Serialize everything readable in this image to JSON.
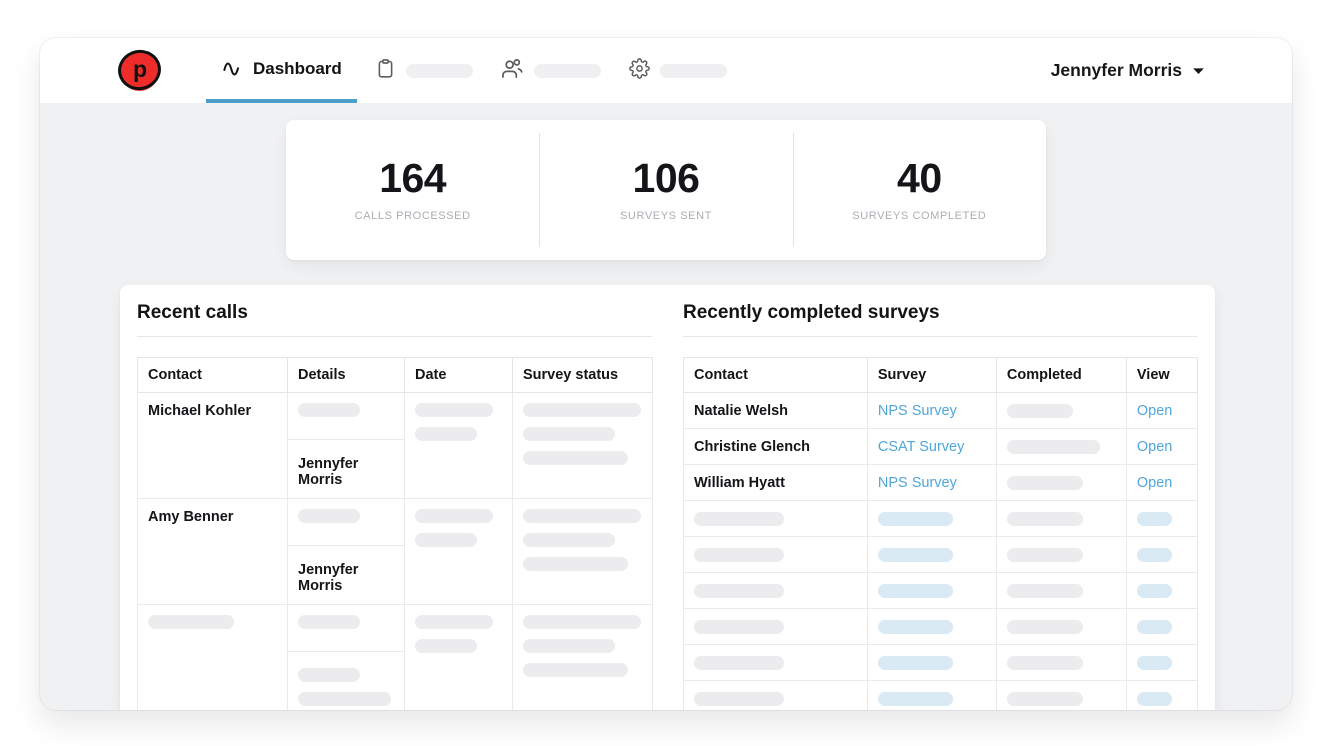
{
  "colors": {
    "accent_blue": "#4fa6d8",
    "tab_underline_blue": "#4b9fc9",
    "light_blue_placeholder": "#d9eaf5",
    "logo_red": "#ee2d2a"
  },
  "nav": {
    "logo_letter": "p",
    "dashboard_tab": "Dashboard",
    "placeholder_tabs": [
      {
        "icon": "clipboard-icon"
      },
      {
        "icon": "users-icon"
      },
      {
        "icon": "gear-icon"
      }
    ],
    "user_name": "Jennyfer Morris"
  },
  "stats": {
    "items": [
      {
        "value": "164",
        "label": "CALLS PROCESSED"
      },
      {
        "value": "106",
        "label": "SURVEYS SENT"
      },
      {
        "value": "40",
        "label": "SURVEYS COMPLETED"
      }
    ]
  },
  "recent_calls": {
    "title": "Recent calls",
    "columns": [
      "Contact",
      "Details",
      "Date",
      "Survey status"
    ],
    "column_keys": [
      "contact",
      "details",
      "date",
      "status"
    ],
    "rows": [
      {
        "contact": {
          "text": "Michael Kohler"
        },
        "details": {
          "split": {
            "top": {
              "ph": [
                62
              ]
            },
            "bottom": {
              "text": "Jennyfer Morris"
            }
          }
        },
        "date": {
          "ph": [
            78,
            62
          ]
        },
        "status": {
          "ph": [
            118,
            92,
            105
          ]
        }
      },
      {
        "contact": {
          "text": "Amy Benner"
        },
        "details": {
          "split": {
            "top": {
              "ph": [
                62
              ]
            },
            "bottom": {
              "text": "Jennyfer Morris"
            }
          }
        },
        "date": {
          "ph": [
            78,
            62
          ]
        },
        "status": {
          "ph": [
            118,
            92,
            105
          ]
        }
      },
      {
        "contact": {
          "ph": [
            86
          ]
        },
        "details": {
          "split": {
            "top": {
              "ph": [
                62
              ]
            },
            "bottom": {
              "ph": [
                62,
                93
              ]
            }
          }
        },
        "date": {
          "ph": [
            78,
            62
          ]
        },
        "status": {
          "ph": [
            118,
            92,
            105
          ]
        }
      }
    ]
  },
  "recent_surveys": {
    "title": "Recently completed surveys",
    "columns": [
      "Contact",
      "Survey",
      "Completed",
      "View"
    ],
    "column_keys": [
      "contact",
      "survey",
      "completed",
      "view"
    ],
    "rows": [
      {
        "contact": {
          "text": "Natalie Welsh"
        },
        "survey": {
          "link": "NPS Survey"
        },
        "completed": {
          "ph": [
            66
          ]
        },
        "view": {
          "link": "Open"
        }
      },
      {
        "contact": {
          "text": "Christine Glench"
        },
        "survey": {
          "link": "CSAT Survey"
        },
        "completed": {
          "ph": [
            93
          ]
        },
        "view": {
          "link": "Open"
        }
      },
      {
        "contact": {
          "text": "William Hyatt"
        },
        "survey": {
          "link": "NPS Survey"
        },
        "completed": {
          "ph": [
            76
          ]
        },
        "view": {
          "link": "Open"
        }
      },
      {
        "contact": {
          "ph": [
            90
          ]
        },
        "survey": {
          "blueph": [
            75
          ]
        },
        "completed": {
          "ph": [
            76
          ]
        },
        "view": {
          "blueph": [
            35
          ]
        }
      },
      {
        "contact": {
          "ph": [
            90
          ]
        },
        "survey": {
          "blueph": [
            75
          ]
        },
        "completed": {
          "ph": [
            76
          ]
        },
        "view": {
          "blueph": [
            35
          ]
        }
      },
      {
        "contact": {
          "ph": [
            90
          ]
        },
        "survey": {
          "blueph": [
            75
          ]
        },
        "completed": {
          "ph": [
            76
          ]
        },
        "view": {
          "blueph": [
            35
          ]
        }
      },
      {
        "contact": {
          "ph": [
            90
          ]
        },
        "survey": {
          "blueph": [
            75
          ]
        },
        "completed": {
          "ph": [
            76
          ]
        },
        "view": {
          "blueph": [
            35
          ]
        }
      },
      {
        "contact": {
          "ph": [
            90
          ]
        },
        "survey": {
          "blueph": [
            75
          ]
        },
        "completed": {
          "ph": [
            76
          ]
        },
        "view": {
          "blueph": [
            35
          ]
        }
      },
      {
        "contact": {
          "ph": [
            90
          ]
        },
        "survey": {
          "blueph": [
            75
          ]
        },
        "completed": {
          "ph": [
            76
          ]
        },
        "view": {
          "blueph": [
            35
          ]
        }
      }
    ]
  }
}
